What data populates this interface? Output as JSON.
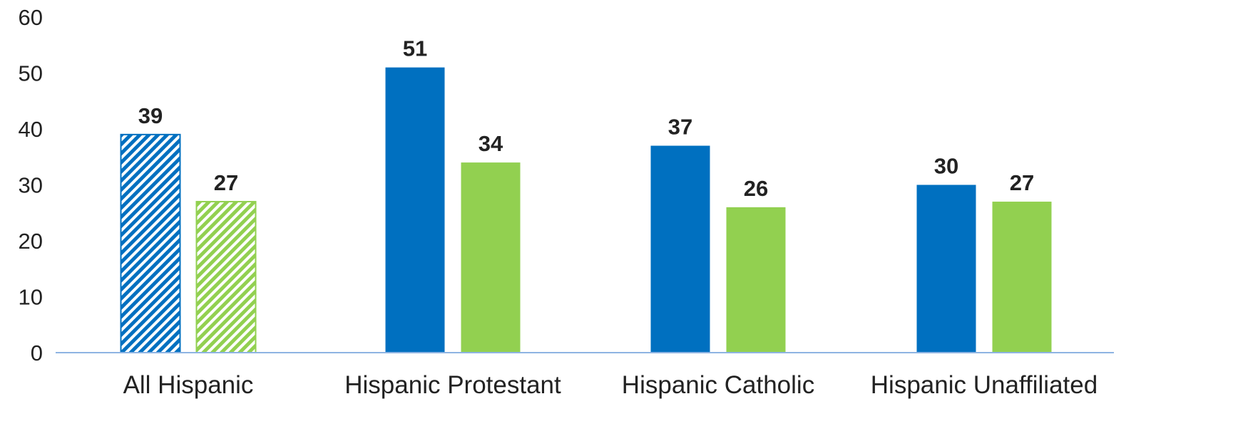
{
  "chart_data": {
    "type": "bar",
    "title": "",
    "xlabel": "",
    "ylabel": "",
    "ylim": [
      0,
      60
    ],
    "yticks": [
      0,
      10,
      20,
      30,
      40,
      50,
      60
    ],
    "grid": false,
    "legend": "none",
    "categories": [
      "All Hispanic",
      "Hispanic Protestant",
      "Hispanic Catholic",
      "Hispanic Unaffiliated"
    ],
    "series": [
      {
        "values": [
          39,
          51,
          37,
          30
        ],
        "color": "#0070c0",
        "hatched_categories": [
          "All Hispanic"
        ]
      },
      {
        "values": [
          27,
          34,
          26,
          27
        ],
        "color": "#92d050",
        "hatched_categories": [
          "All Hispanic"
        ]
      }
    ],
    "data_labels": true,
    "axis_color": "#8eb4e3"
  }
}
